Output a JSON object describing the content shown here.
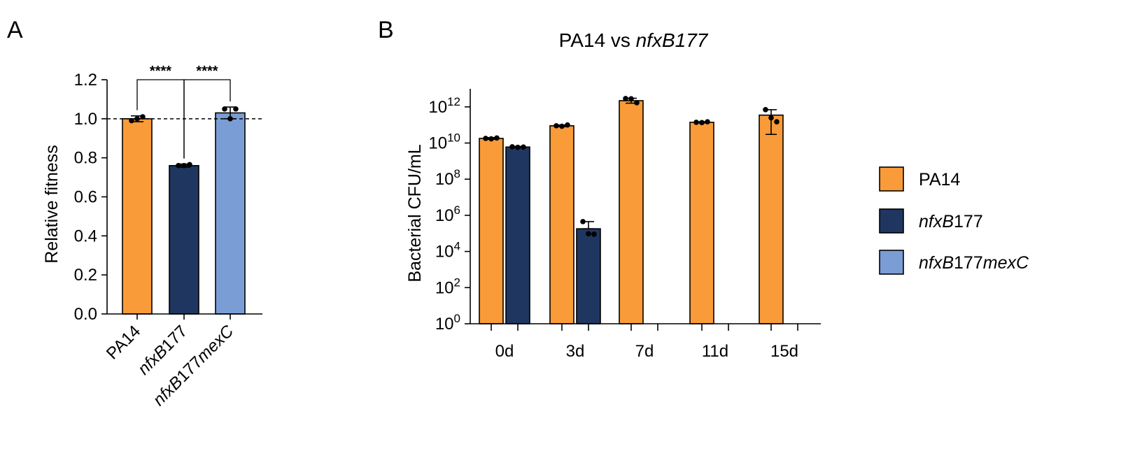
{
  "colors": {
    "PA14": "#F99B38",
    "nfxB177": "#1F3660",
    "nfxB177mexC": "#7B9DD6",
    "axis": "#000000"
  },
  "chart_data": [
    {
      "panel": "A",
      "type": "bar",
      "ylabel": "Relative fitness",
      "ylim": [
        0,
        1.2
      ],
      "yticks": [
        "0.0",
        "0.2",
        "0.4",
        "0.6",
        "0.8",
        "1.0",
        "1.2"
      ],
      "reference_line": 1.0,
      "categories": [
        {
          "parts": [
            {
              "t": "PA14",
              "i": false
            }
          ]
        },
        {
          "parts": [
            {
              "t": "nfxB",
              "i": true
            },
            {
              "t": "177",
              "i": false
            }
          ]
        },
        {
          "parts": [
            {
              "t": "nfxB",
              "i": true
            },
            {
              "t": "177",
              "i": false
            },
            {
              "t": "mexC",
              "i": true
            }
          ]
        }
      ],
      "series_keys": [
        "PA14",
        "nfxB177",
        "nfxB177mexC"
      ],
      "values": [
        1.0,
        0.76,
        1.03
      ],
      "errors": [
        0.015,
        0.008,
        0.03
      ],
      "points": [
        [
          0.99,
          1.01,
          1.0
        ],
        [
          0.76,
          0.765,
          0.76
        ],
        [
          1.05,
          1.05,
          1.0
        ]
      ],
      "significance": [
        {
          "from": 0,
          "to": 1,
          "label": "****"
        },
        {
          "from": 1,
          "to": 2,
          "label": "****"
        }
      ]
    },
    {
      "panel": "B",
      "type": "bar",
      "log_scale": true,
      "title": {
        "parts": [
          {
            "t": "PA14 vs ",
            "i": false
          },
          {
            "t": "nfxB177",
            "i": true
          }
        ]
      },
      "ylabel": "Bacterial CFU/mL",
      "ylim_exp": [
        0,
        13
      ],
      "ytick_exps": [
        "0",
        "2",
        "4",
        "6",
        "8",
        "10",
        "12"
      ],
      "ytick_base": "10",
      "categories": [
        "0d",
        "3d",
        "7d",
        "11d",
        "15d"
      ],
      "series": [
        {
          "key": "PA14",
          "values": [
            18000000000.0,
            90000000000.0,
            2200000000000.0,
            140000000000.0,
            350000000000.0
          ],
          "err_low": [
            16000000000.0,
            80000000000.0,
            1600000000000.0,
            130000000000.0,
            30000000000.0
          ],
          "err_high": [
            20000000000.0,
            100000000000.0,
            3000000000000.0,
            150000000000.0,
            700000000000.0
          ],
          "points": [
            [
              18000000000.0,
              19000000000.0,
              17000000000.0
            ],
            [
              90000000000.0,
              100000000000.0,
              85000000000.0
            ],
            [
              2900000000000.0,
              1700000000000.0,
              2800000000000.0
            ],
            [
              140000000000.0,
              150000000000.0,
              135000000000.0
            ],
            [
              700000000000.0,
              150000000000.0,
              250000000000.0
            ]
          ]
        },
        {
          "key": "nfxB177",
          "values": [
            6000000000.0,
            180000,
            null,
            null,
            null
          ],
          "err_low": [
            5500000000.0,
            180000,
            null,
            null,
            null
          ],
          "err_high": [
            6500000000.0,
            450000,
            null,
            null,
            null
          ],
          "points": [
            [
              6200000000.0,
              6000000000.0,
              5800000000.0
            ],
            [
              450000,
              90000,
              95000
            ],
            null,
            null,
            null
          ]
        }
      ]
    }
  ],
  "panel_labels": [
    "A",
    "B"
  ],
  "legend": [
    {
      "key": "PA14",
      "parts": [
        {
          "t": "PA14",
          "i": false
        }
      ]
    },
    {
      "key": "nfxB177",
      "parts": [
        {
          "t": "nfxB",
          "i": true
        },
        {
          "t": "177",
          "i": false
        }
      ]
    },
    {
      "key": "nfxB177mexC",
      "parts": [
        {
          "t": "nfxB",
          "i": true
        },
        {
          "t": "177",
          "i": false
        },
        {
          "t": "mexC",
          "i": true
        }
      ]
    }
  ]
}
